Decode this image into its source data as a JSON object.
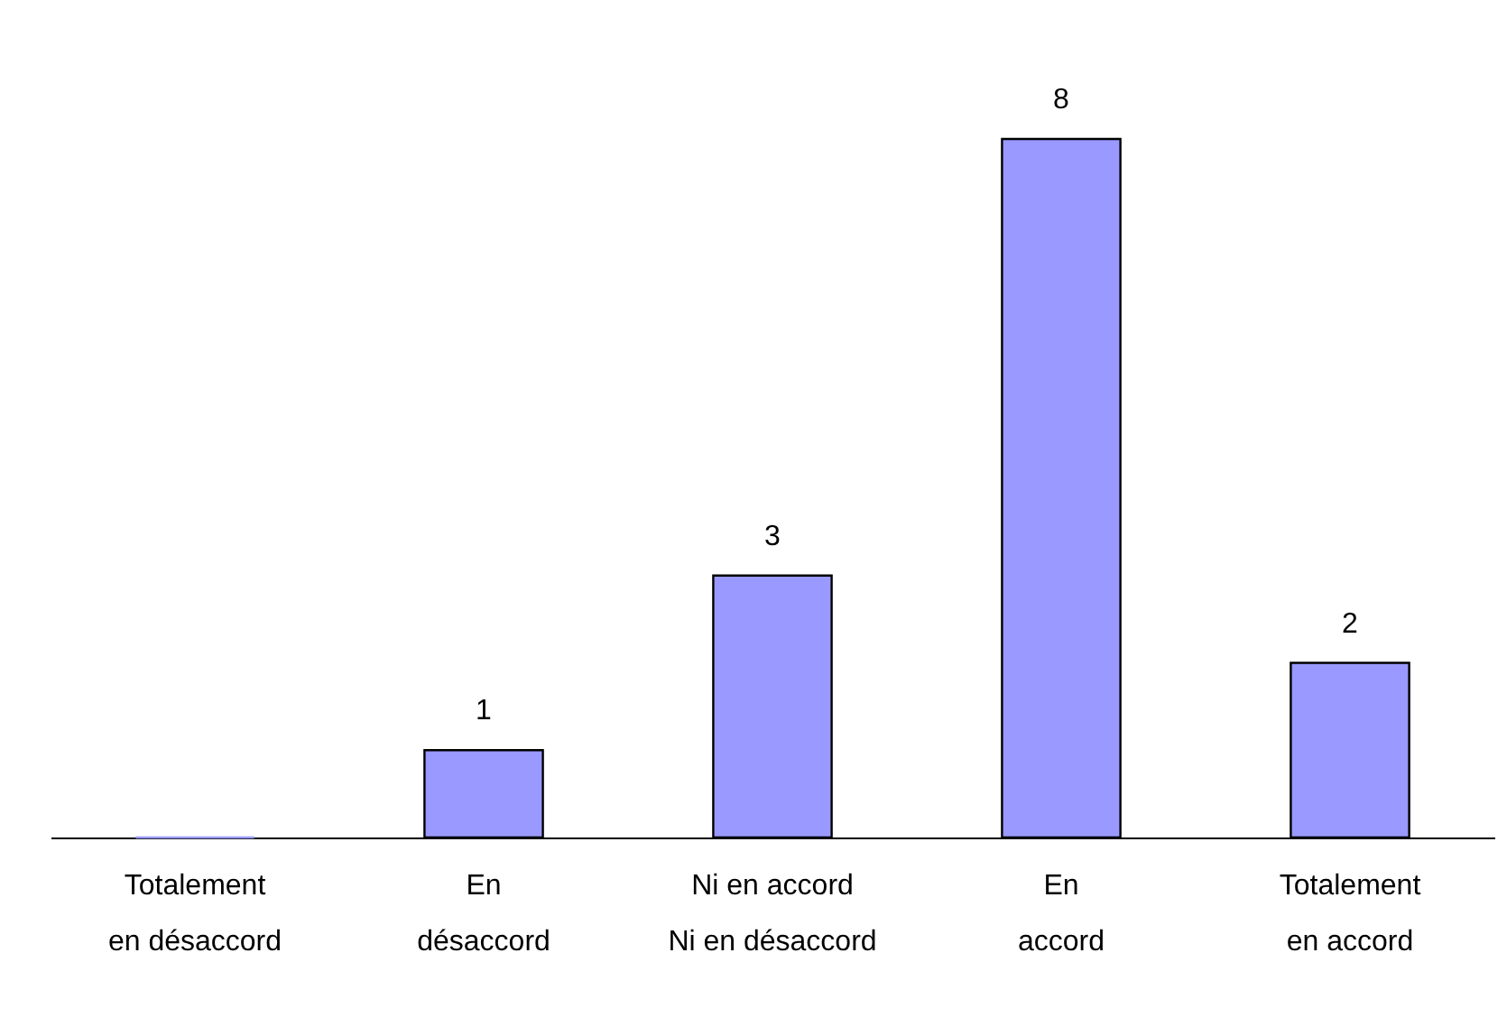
{
  "chart_data": {
    "type": "bar",
    "categories": [
      "Totalement\nen désaccord",
      "En\ndésaccord",
      "Ni en accord\nNi en désaccord",
      "En\naccord",
      "Totalement\nen accord"
    ],
    "values": [
      0,
      1,
      3,
      8,
      2
    ],
    "color": "#9999ff",
    "value_labels": [
      null,
      "1",
      "3",
      "8",
      "2"
    ],
    "grid": false
  }
}
